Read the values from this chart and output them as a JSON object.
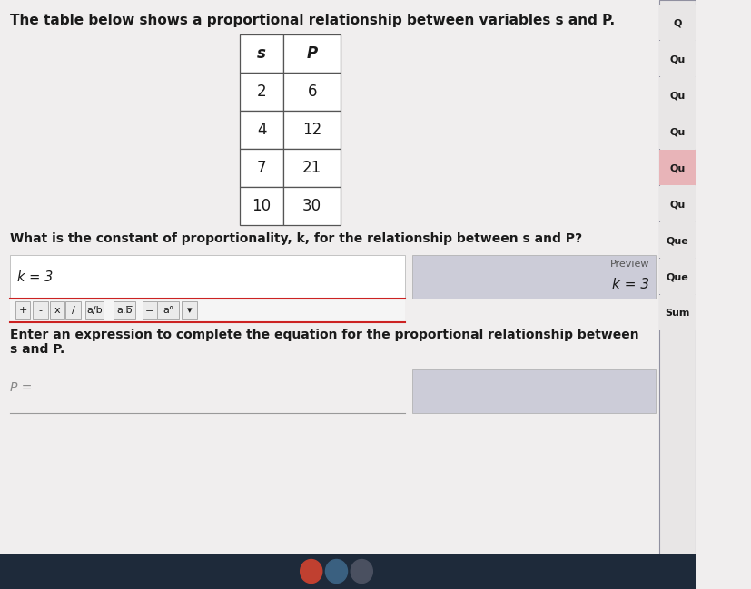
{
  "title": "The table below shows a proportional relationship between variables s and P.",
  "table_headers": [
    "s",
    "P"
  ],
  "table_rows": [
    [
      "2",
      "6"
    ],
    [
      "4",
      "12"
    ],
    [
      "7",
      "21"
    ],
    [
      "10",
      "30"
    ]
  ],
  "question1": "What is the constant of proportionality, k, for the relationship between s and P?",
  "answer1_left": "k = 3",
  "preview_label": "Preview",
  "answer1_right": "k = 3",
  "toolbar_buttons": [
    "+",
    "-",
    "x",
    "/",
    "a/b",
    "a.b",
    "=",
    "a°",
    "▾"
  ],
  "question2_line1": "Enter an expression to complete the equation for the proportional relationship between",
  "question2_line2": "s and P.",
  "p_label": "P =",
  "sidebar_labels": [
    "Q",
    "Qu",
    "Qu",
    "Qu",
    "Qu",
    "Qu",
    "Que",
    "Que",
    "Sum"
  ],
  "sidebar_highlight_index": 4,
  "bg_white": "#f0eeee",
  "bg_gray": "#c8c6c6",
  "sidebar_bg": "#e8e6e6",
  "sidebar_highlight": "#e8b4b8",
  "sidebar_line": "#9090a0",
  "table_bg": "#ffffff",
  "answer_box_bg": "#ccccd8",
  "preview_box_bg": "#ccccd8",
  "toolbar_bg": "#f5f5f5",
  "toolbar_border_top": "#cc2222",
  "toolbar_border_bottom": "#cc2222",
  "text_color": "#1a1a1a",
  "gray_text": "#888888",
  "title_fontsize": 11,
  "body_fontsize": 10,
  "table_fontsize": 12,
  "small_fontsize": 8
}
